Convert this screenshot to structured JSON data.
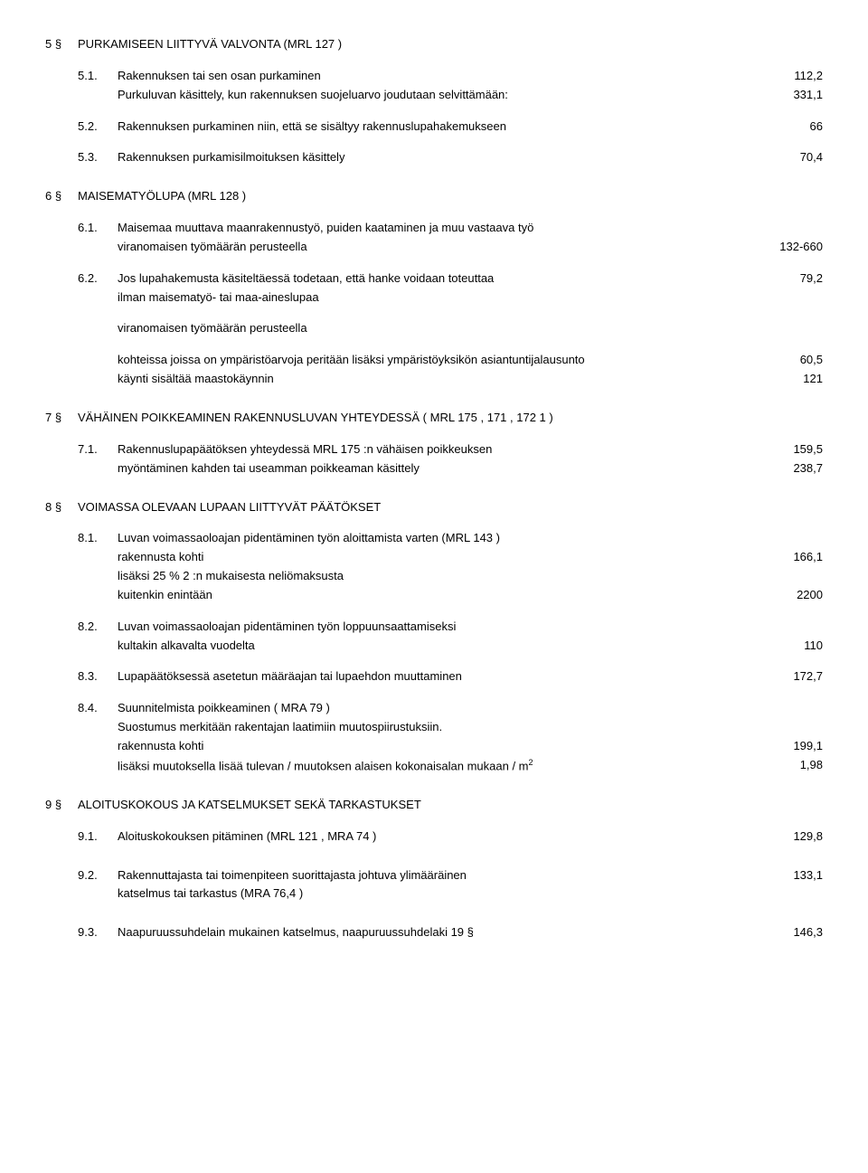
{
  "s5": {
    "num": "5 §",
    "title": "PURKAMISEEN LIITTYVÄ VALVONTA (MRL 127 )",
    "i1n": "5.1.",
    "i1a": "Rakennuksen tai sen osan purkaminen",
    "i1av": "112,2",
    "i1b": "Purkuluvan käsittely, kun rakennuksen suojeluarvo joudutaan selvittämään:",
    "i1bv": "331,1",
    "i2n": "5.2.",
    "i2a": "Rakennuksen purkaminen niin, että se sisältyy rakennuslupahakemukseen",
    "i2av": "66",
    "i3n": "5.3.",
    "i3a": "Rakennuksen purkamisilmoituksen käsittely",
    "i3av": "70,4"
  },
  "s6": {
    "num": "6 §",
    "title": "MAISEMATYÖLUPA (MRL 128 )",
    "i1n": "6.1.",
    "i1a": "Maisemaa muuttava maanrakennustyö, puiden kaataminen ja muu vastaava työ",
    "i1b": "viranomaisen työmäärän perusteella",
    "i1bv": "132-660",
    "i2n": "6.2.",
    "i2a": "Jos lupahakemusta käsiteltäessä todetaan, että hanke voidaan toteuttaa",
    "i2av": "79,2",
    "i2b": "ilman maisematyö- tai maa-aineslupaa",
    "extra1": "viranomaisen työmäärän perusteella",
    "extra2": "kohteissa joissa on ympäristöarvoja peritään lisäksi ympäristöyksikön asiantuntijalausunto",
    "extra2v": "60,5",
    "extra3": "käynti sisältää maastokäynnin",
    "extra3v": "121"
  },
  "s7": {
    "num": "7 §",
    "title": "VÄHÄINEN POIKKEAMINEN RAKENNUSLUVAN YHTEYDESSÄ ( MRL 175 , 171 , 172 1 )",
    "i1n": "7.1.",
    "i1a": "Rakennuslupapäätöksen yhteydessä MRL 175 :n vähäisen poikkeuksen",
    "i1av": "159,5",
    "i1b": " myöntäminen kahden tai useamman poikkeaman käsittely",
    "i1bv": "238,7"
  },
  "s8": {
    "num": "8 §",
    "title": "VOIMASSA OLEVAAN LUPAAN LIITTYVÄT PÄÄTÖKSET",
    "i1n": "8.1.",
    "i1a": "Luvan voimassaoloajan pidentäminen työn aloittamista varten (MRL 143 )",
    "i1b": "rakennusta kohti",
    "i1bv": "166,1",
    "i1c": "lisäksi 25 % 2 :n mukaisesta neliömaksusta",
    "i1d": "kuitenkin enintään",
    "i1dv": "2200",
    "i2n": "8.2.",
    "i2a": "Luvan voimassaoloajan pidentäminen työn loppuunsaattamiseksi",
    "i2b": "kultakin alkavalta vuodelta",
    "i2bv": "110",
    "i3n": "8.3.",
    "i3a": "Lupapäätöksessä asetetun määräajan tai lupaehdon muuttaminen",
    "i3av": "172,7",
    "i4n": "8.4.",
    "i4a": "Suunnitelmista poikkeaminen ( MRA 79 )",
    "i4b": "Suostumus merkitään rakentajan laatimiin muutospiirustuksiin.",
    "i4c": "rakennusta kohti",
    "i4cv": "199,1",
    "i4d_pre": "lisäksi muutoksella lisää tulevan / muutoksen alaisen kokonaisalan mukaan / m",
    "i4dv": "1,98"
  },
  "s9": {
    "num": "9 §",
    "title": "ALOITUSKOKOUS JA KATSELMUKSET SEKÄ TARKASTUKSET",
    "i1n": "9.1.",
    "i1a": "Aloituskokouksen pitäminen (MRL 121 , MRA 74 )",
    "i1av": "129,8",
    "i2n": "9.2.",
    "i2a": "Rakennuttajasta tai toimenpiteen suorittajasta johtuva ylimääräinen",
    "i2av": "133,1",
    "i2b": "katselmus tai tarkastus (MRA 76,4 )",
    "i3n": "9.3.",
    "i3a": "Naapuruussuhdelain mukainen katselmus, naapuruussuhdelaki 19 §",
    "i3av": "146,3"
  }
}
